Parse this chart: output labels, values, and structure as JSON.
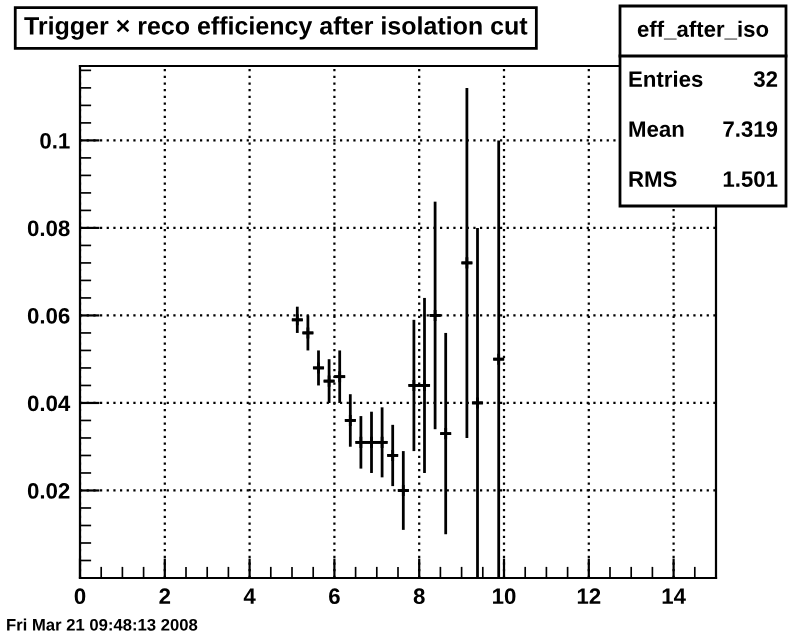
{
  "chart_data": {
    "type": "scatter",
    "title": "Trigger × reco efficiency after isolation cut",
    "x": [
      5.125,
      5.375,
      5.625,
      5.875,
      6.125,
      6.375,
      6.625,
      6.875,
      7.125,
      7.375,
      7.625,
      7.875,
      8.125,
      8.375,
      8.625,
      9.125,
      9.375,
      9.875
    ],
    "series": [
      {
        "color": "#000000",
        "values": [
          0.059,
          0.056,
          0.048,
          0.045,
          0.046,
          0.036,
          0.031,
          0.031,
          0.031,
          0.028,
          0.02,
          0.044,
          0.044,
          0.06,
          0.033,
          0.072,
          0.04,
          0.05
        ],
        "errors": [
          0.003,
          0.004,
          0.004,
          0.005,
          0.006,
          0.006,
          0.006,
          0.007,
          0.008,
          0.007,
          0.009,
          0.015,
          0.02,
          0.026,
          0.023,
          0.04,
          0.04,
          0.05
        ],
        "xerrors": [
          0.125,
          0.125,
          0.125,
          0.125,
          0.125,
          0.125,
          0.125,
          0.125,
          0.125,
          0.125,
          0.125,
          0.125,
          0.125,
          0.125,
          0.125,
          0.125,
          0.125,
          0.125
        ]
      }
    ],
    "xlim": [
      0,
      15
    ],
    "xticks": [
      0,
      2,
      4,
      6,
      8,
      10,
      12,
      14
    ],
    "ylim": [
      0,
      0.117
    ],
    "yticks": [
      0.02,
      0.04,
      0.06,
      0.08,
      0.1
    ],
    "grid": true,
    "marker": "cross",
    "annotations": [
      "eff_after_iso",
      "Entries 32",
      "Mean 7.319",
      "RMS 1.501",
      "Fri Mar 21 09:48:13 2008"
    ]
  }
}
